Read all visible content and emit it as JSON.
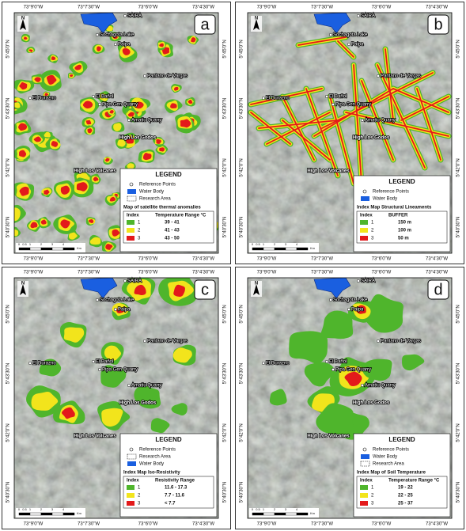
{
  "coordinates": {
    "longitudes": [
      "73°9'0\"W",
      "73°7'30\"W",
      "73°6'0\"W",
      "73°4'30\"W"
    ],
    "latitudes": [
      "5°45'0\"N",
      "5°43'30\"N",
      "5°42'0\"N",
      "5°40'30\"N"
    ]
  },
  "north": "N",
  "scale": {
    "ticks": [
      "0",
      "0.5",
      "1",
      "2",
      "3",
      "4"
    ],
    "unit": "Km"
  },
  "places": [
    "Sochagota Lake",
    "SAIRA",
    "Paipa",
    "Pantano de Vargas",
    "El Durazno",
    "El Bañol",
    "Pipa Gen Quarry",
    "Amatiu Quarry",
    "High Los Godos",
    "High Los Volcanes"
  ],
  "panels": [
    {
      "label": "a",
      "legend": {
        "title": "LEGEND",
        "items": [
          "Reference Points",
          "Water Body",
          "Research Area"
        ],
        "map_title": "Map of satellite thermal anomalies",
        "header": [
          "Index",
          "Temperature Range °C"
        ],
        "rows": [
          {
            "index": "1",
            "range": "39 - 41",
            "color": "#4fb52c"
          },
          {
            "index": "2",
            "range": "41 - 43",
            "color": "#f2e41c"
          },
          {
            "index": "3",
            "range": "43 - 50",
            "color": "#e3191b"
          }
        ]
      }
    },
    {
      "label": "b",
      "legend": {
        "title": "LEGEND",
        "items": [
          "Reference Points",
          "Water Body"
        ],
        "map_title": "Index Map Structural Lineaments",
        "header": [
          "Index",
          "BUFFER"
        ],
        "rows": [
          {
            "index": "1",
            "range": "150 m",
            "color": "#4fb52c"
          },
          {
            "index": "2",
            "range": "100 m",
            "color": "#f2e41c"
          },
          {
            "index": "3",
            "range": "50 m",
            "color": "#e3191b"
          }
        ]
      }
    },
    {
      "label": "c",
      "legend": {
        "title": "LEGEND",
        "items": [
          "Reference Points",
          "Research Area",
          "Water Body"
        ],
        "map_title": "Index Map Iso-Resistivity",
        "header": [
          "Index",
          "Resistivity Range"
        ],
        "rows": [
          {
            "index": "1",
            "range": "11.6 - 17.3",
            "color": "#4fb52c"
          },
          {
            "index": "2",
            "range": "7.7 - 11.6",
            "color": "#f2e41c"
          },
          {
            "index": "3",
            "range": "< 7.7",
            "color": "#e3191b"
          }
        ]
      }
    },
    {
      "label": "d",
      "legend": {
        "title": "LEGEND",
        "items": [
          "Reference Points",
          "Water Body",
          "Research Area"
        ],
        "map_title": "Index Map of Soil Temperature",
        "header": [
          "Index",
          "Temperature Range °C"
        ],
        "rows": [
          {
            "index": "1",
            "range": "19 - 22",
            "color": "#4fb52c"
          },
          {
            "index": "2",
            "range": "22 - 25",
            "color": "#f2e41c"
          },
          {
            "index": "3",
            "range": "25 - 37",
            "color": "#e3191b"
          }
        ]
      }
    }
  ]
}
